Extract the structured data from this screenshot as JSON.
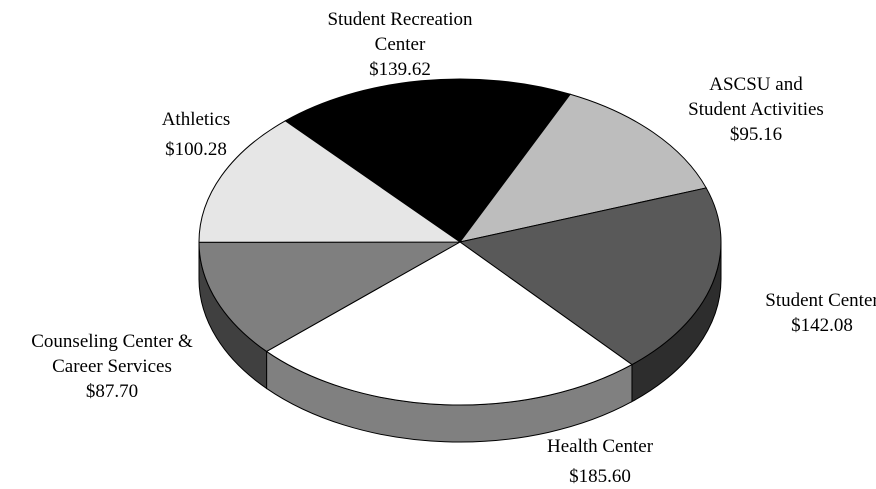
{
  "chart_data": {
    "type": "pie",
    "categories": [
      "Student Recreation\nCenter",
      "ASCSU and\nStudent Activities",
      "Student Center",
      "Health Center",
      "Counseling Center &\nCareer Services",
      "Athletics"
    ],
    "values": [
      139.62,
      95.16,
      142.08,
      185.6,
      87.7,
      100.28
    ],
    "value_labels": [
      "$139.62",
      "$95.16",
      "$142.08",
      "$185.60",
      "$87.70",
      "$100.28"
    ],
    "colors": [
      "#000000",
      "#bdbdbd",
      "#595959",
      "#ffffff",
      "#7f7f7f",
      "#e6e6e6"
    ],
    "three_d": true
  }
}
